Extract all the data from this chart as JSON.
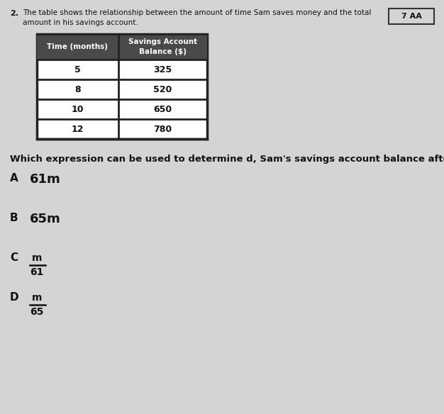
{
  "question_num": "2.",
  "question_text_line1": "The table shows the relationship between the amount of time Sam saves money and the total",
  "question_text_line2": "amount in his savings account.",
  "tag": "7 AA",
  "table_headers": [
    "Time (months)",
    "Savings Account\nBalance ($)"
  ],
  "table_data": [
    [
      "5",
      "325"
    ],
    [
      "8",
      "520"
    ],
    [
      "10",
      "650"
    ],
    [
      "12",
      "780"
    ]
  ],
  "question2": "Which expression can be used to determine d, Sam's savings account balance after m months?",
  "options": [
    {
      "letter": "A",
      "text": "61m",
      "fraction": false
    },
    {
      "letter": "B",
      "text": "65m",
      "fraction": false
    },
    {
      "letter": "C",
      "numerator": "m",
      "denominator": "61",
      "fraction": true
    },
    {
      "letter": "D",
      "numerator": "m",
      "denominator": "65",
      "fraction": true
    }
  ],
  "bg_color": "#d4d4d4",
  "text_color": "#111111",
  "header_bg": "#4a4a4a",
  "table_border": "#222222"
}
